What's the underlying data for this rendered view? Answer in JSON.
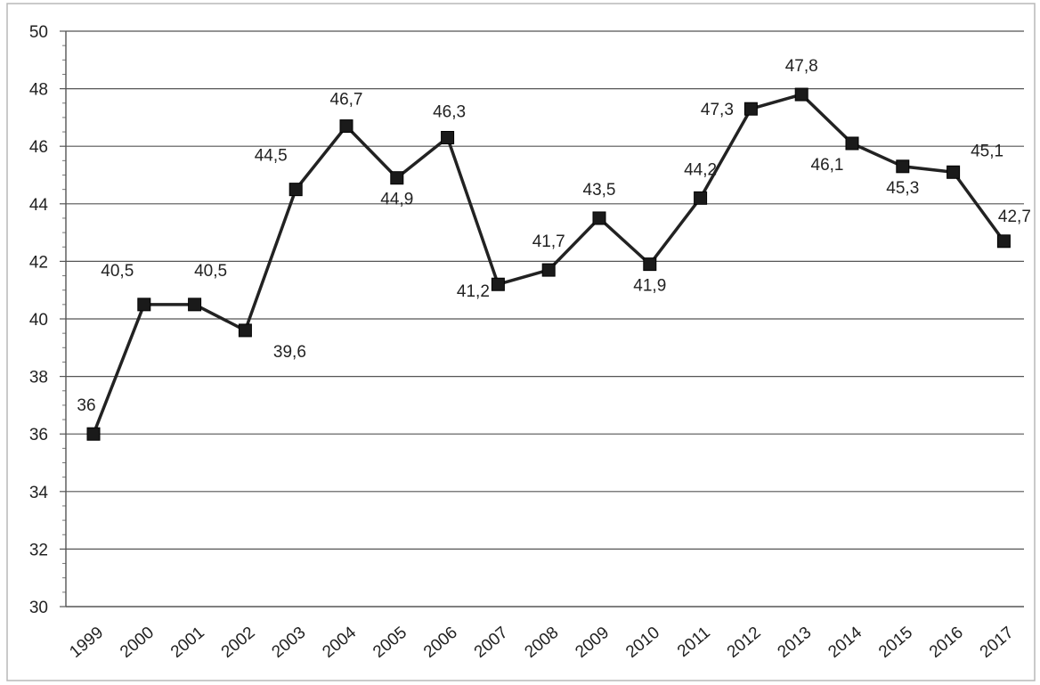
{
  "chart_data": {
    "type": "line",
    "title": "",
    "xlabel": "",
    "ylabel": "",
    "categories": [
      "1999",
      "2000",
      "2001",
      "2002",
      "2003",
      "2004",
      "2005",
      "2006",
      "2007",
      "2008",
      "2009",
      "2010",
      "2011",
      "2012",
      "2013",
      "2014",
      "2015",
      "2016",
      "2017"
    ],
    "series": [
      {
        "values": [
          36,
          40.5,
          40.5,
          39.6,
          44.5,
          46.7,
          44.9,
          46.3,
          41.2,
          41.7,
          43.5,
          41.9,
          44.2,
          47.3,
          47.8,
          46.1,
          45.3,
          45.1,
          42.7
        ],
        "labels": [
          "36",
          "40,5",
          "40,5",
          "39,6",
          "44,5",
          "46,7",
          "44,9",
          "46,3",
          "41,2",
          "41,7",
          "43,5",
          "41,9",
          "44,2",
          "47,3",
          "47,8",
          "46,1",
          "45,3",
          "45,1",
          "42,7"
        ],
        "color": "#222222",
        "marker": "square"
      }
    ],
    "ylim": [
      30,
      50
    ],
    "yticks": [
      "30",
      "32",
      "34",
      "36",
      "38",
      "40",
      "42",
      "44",
      "46",
      "48",
      "50"
    ],
    "grid": true,
    "legend": "none"
  }
}
